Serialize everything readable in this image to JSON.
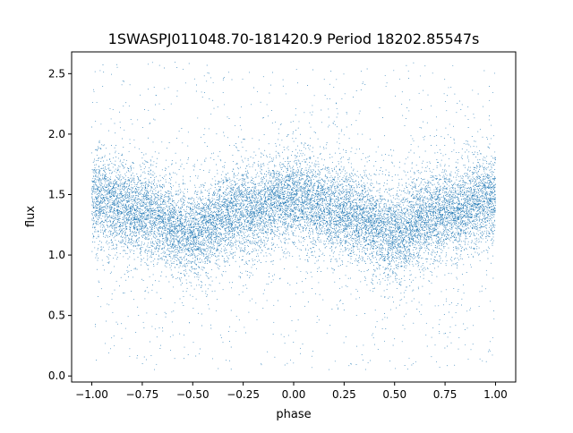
{
  "chart_data": {
    "type": "scatter",
    "title": "1SWASPJ011048.70-181420.9 Period 18202.85547s",
    "xlabel": "phase",
    "ylabel": "flux",
    "xlim": [
      -1.1,
      1.1
    ],
    "ylim": [
      -0.05,
      2.68
    ],
    "xticks": [
      -1.0,
      -0.75,
      -0.5,
      -0.25,
      0.0,
      0.25,
      0.5,
      0.75,
      1.0
    ],
    "xtick_labels": [
      "−1.00",
      "−0.75",
      "−0.50",
      "−0.25",
      "0.00",
      "0.25",
      "0.50",
      "0.75",
      "1.00"
    ],
    "yticks": [
      0.0,
      0.5,
      1.0,
      1.5,
      2.0,
      2.5
    ],
    "ytick_labels": [
      "0.0",
      "0.5",
      "1.0",
      "1.5",
      "2.0",
      "2.5"
    ],
    "grid": false,
    "marker_color": "#1f77b4",
    "series": [
      {
        "point_count_approx": 16000,
        "trend": {
          "phase": [
            -1.0,
            -0.75,
            -0.5,
            -0.25,
            0.0,
            0.25,
            0.5,
            0.75,
            1.0
          ],
          "flux_mean": [
            1.47,
            1.36,
            1.18,
            1.36,
            1.47,
            1.36,
            1.18,
            1.36,
            1.47
          ]
        },
        "flux_core_spread": 0.17,
        "flux_outlier_range": [
          0.05,
          2.6
        ]
      }
    ]
  }
}
